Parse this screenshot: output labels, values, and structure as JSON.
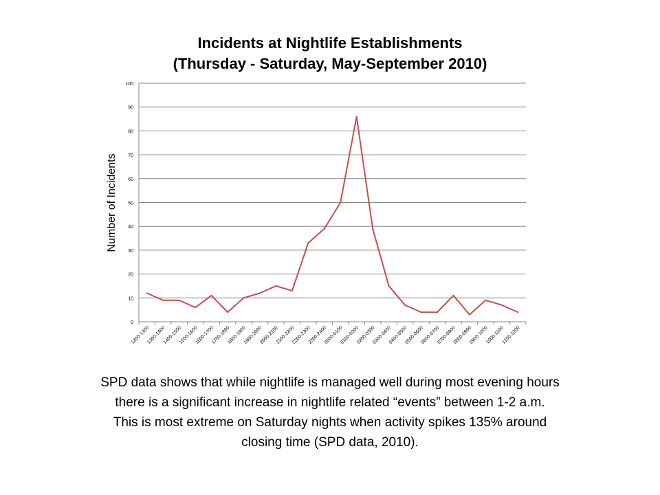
{
  "chart_data": {
    "type": "line",
    "title": "Incidents at Nightlife Establishments",
    "subtitle": "(Thursday - Saturday, May-September 2010)",
    "xlabel": "",
    "ylabel": "Number of Incidents",
    "ylim": [
      0,
      100
    ],
    "yticks": [
      0,
      10,
      20,
      30,
      40,
      50,
      60,
      70,
      80,
      90,
      100
    ],
    "grid": true,
    "legend": "none",
    "categories": [
      "1200-1300",
      "1300-1400",
      "1400-1500",
      "1500-1600",
      "1600-1700",
      "1700-1800",
      "1800-1900",
      "1900-2000",
      "2000-2100",
      "2100-2200",
      "2200-2300",
      "2300-2400",
      "0000-0100",
      "0100-0200",
      "0200-0300",
      "0300-0400",
      "0400-0500",
      "0500-0600",
      "0600-0700",
      "0700-0800",
      "0800-0900",
      "0900-1000",
      "1000-1100",
      "1100-1200"
    ],
    "series": [
      {
        "values": [
          12,
          9,
          9,
          6,
          11,
          4,
          10,
          12,
          15,
          13,
          33,
          39,
          50,
          86,
          39,
          15,
          7,
          4,
          4,
          11,
          3,
          9,
          7,
          4
        ]
      }
    ],
    "line_color": "#c0504d",
    "grid_color": "#868686"
  },
  "caption": {
    "lines": [
      "SPD data shows that while nightlife is managed well during most evening hours",
      "there is a significant increase in nightlife related “events” between 1-2 a.m.",
      "This is most extreme on Saturday nights when activity spikes 135% around",
      "closing time (SPD data, 2010)."
    ]
  }
}
